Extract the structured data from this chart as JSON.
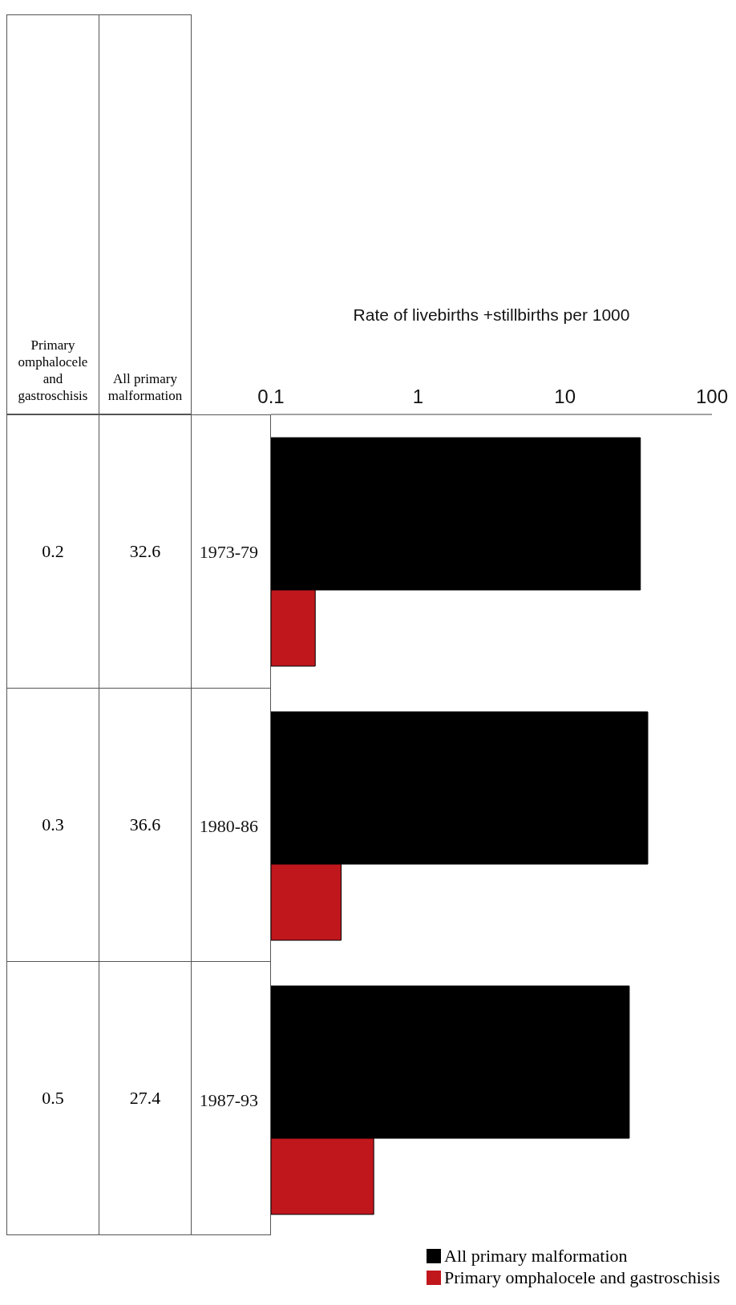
{
  "chart_data": {
    "type": "bar",
    "orientation": "horizontal",
    "xlabel": "Rate of livebirths +stillbirths per 1000",
    "categories": [
      "1973-79",
      "1980-86",
      "1987-93"
    ],
    "series": [
      {
        "name": "All primary malformation",
        "color": "#000000",
        "values": [
          32.6,
          36.6,
          27.4
        ]
      },
      {
        "name": "Primary omphalocele and gastroschisis",
        "color": "#c0171d",
        "values": [
          0.2,
          0.3,
          0.5
        ]
      }
    ],
    "xlim": [
      0.1,
      100
    ],
    "xticks": [
      0.1,
      1,
      10,
      100
    ],
    "log": "x",
    "legend": "bottom right",
    "data_labels": true
  }
}
